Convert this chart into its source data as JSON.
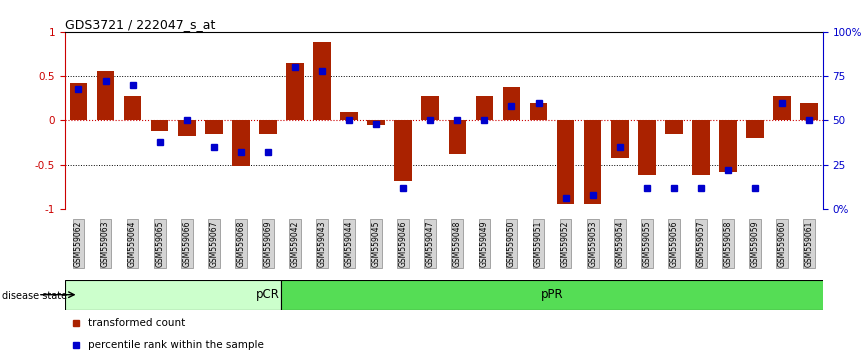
{
  "title": "GDS3721 / 222047_s_at",
  "samples": [
    "GSM559062",
    "GSM559063",
    "GSM559064",
    "GSM559065",
    "GSM559066",
    "GSM559067",
    "GSM559068",
    "GSM559069",
    "GSM559042",
    "GSM559043",
    "GSM559044",
    "GSM559045",
    "GSM559046",
    "GSM559047",
    "GSM559048",
    "GSM559049",
    "GSM559050",
    "GSM559051",
    "GSM559052",
    "GSM559053",
    "GSM559054",
    "GSM559055",
    "GSM559056",
    "GSM559057",
    "GSM559058",
    "GSM559059",
    "GSM559060",
    "GSM559061"
  ],
  "transformed_count": [
    0.42,
    0.56,
    0.28,
    -0.12,
    -0.18,
    -0.15,
    -0.52,
    -0.15,
    0.65,
    0.88,
    0.1,
    -0.05,
    -0.68,
    0.28,
    -0.38,
    0.28,
    0.38,
    0.2,
    -0.95,
    -0.95,
    -0.42,
    -0.62,
    -0.15,
    -0.62,
    -0.58,
    -0.2,
    0.28,
    0.2
  ],
  "percentile_rank": [
    68,
    72,
    70,
    38,
    50,
    35,
    32,
    32,
    80,
    78,
    50,
    48,
    12,
    50,
    50,
    50,
    58,
    60,
    6,
    8,
    35,
    12,
    12,
    12,
    22,
    12,
    60,
    50
  ],
  "pcr_count": 8,
  "ppr_count": 20,
  "bar_color": "#aa2200",
  "dot_color": "#0000cc",
  "pcr_color": "#ccffcc",
  "ppr_color": "#55dd55",
  "zero_line_color": "#cc0000",
  "background_color": "#ffffff",
  "ylim": [
    -1,
    1
  ],
  "y2lim": [
    0,
    100
  ],
  "yticks": [
    -1,
    -0.5,
    0,
    0.5,
    1
  ],
  "ytick_labels": [
    "-1",
    "-0.5",
    "0",
    "0.5",
    "1"
  ],
  "y2ticks": [
    0,
    25,
    50,
    75,
    100
  ],
  "y2tick_labels": [
    "0%",
    "25",
    "50",
    "75",
    "100%"
  ],
  "disease_state_label": "disease state",
  "legend_bar_label": "transformed count",
  "legend_dot_label": "percentile rank within the sample"
}
